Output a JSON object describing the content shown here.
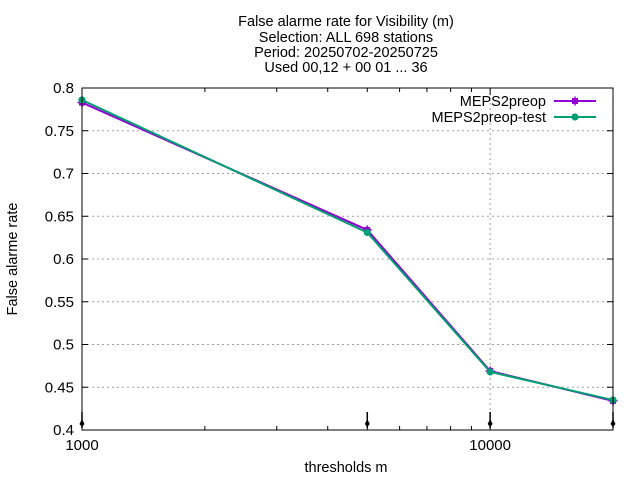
{
  "chart_data": {
    "type": "line",
    "title_lines": [
      "False alarme rate  for Visibility (m)",
      "Selection: ALL    698 stations",
      "Period: 20250702-20250725",
      "Used 00,12 + 00 01 ... 36"
    ],
    "xlabel": "thresholds m",
    "ylabel": "False alarme rate",
    "x_scale": "log",
    "xlim": [
      1000,
      20000
    ],
    "ylim": [
      0.4,
      0.8
    ],
    "x_ticks": [
      {
        "value": 1000,
        "label": "1000"
      },
      {
        "value": 10000,
        "label": "10000"
      }
    ],
    "y_ticks": [
      {
        "value": 0.4,
        "label": "0.4"
      },
      {
        "value": 0.45,
        "label": "0.45"
      },
      {
        "value": 0.5,
        "label": "0.5"
      },
      {
        "value": 0.55,
        "label": "0.55"
      },
      {
        "value": 0.6,
        "label": "0.6"
      },
      {
        "value": 0.65,
        "label": "0.65"
      },
      {
        "value": 0.7,
        "label": "0.7"
      },
      {
        "value": 0.75,
        "label": "0.75"
      },
      {
        "value": 0.8,
        "label": "0.8"
      }
    ],
    "grid": true,
    "legend_position": "top-right",
    "x": [
      1000,
      5000,
      10000,
      20000
    ],
    "series": [
      {
        "name": "MEPS2preop",
        "color": "#9400d3",
        "marker": "plus",
        "values": [
          0.783,
          0.634,
          0.469,
          0.434
        ]
      },
      {
        "name": "MEPS2preop-test",
        "color": "#009e73",
        "marker": "filled-circle",
        "values": [
          0.786,
          0.631,
          0.468,
          0.435
        ]
      }
    ],
    "sample_points": [
      1000,
      5000,
      10000,
      20000
    ]
  }
}
